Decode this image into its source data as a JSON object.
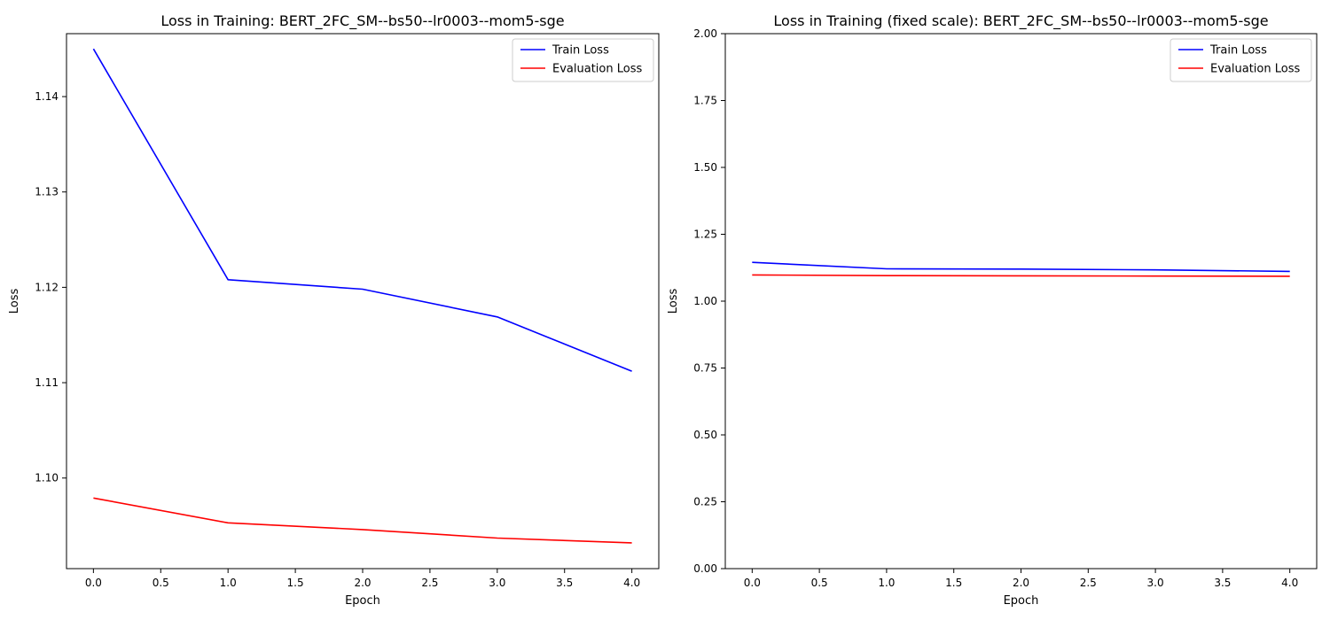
{
  "chart_data": [
    {
      "type": "line",
      "title": "Loss in Training: BERT_2FC_SM--bs50--lr0003--mom5-sge",
      "xlabel": "Epoch",
      "ylabel": "Loss",
      "x": [
        0,
        1,
        2,
        3,
        4
      ],
      "xlim": [
        -0.2,
        4.2
      ],
      "ylim": [
        1.0905,
        1.1466
      ],
      "xticks": [
        0.0,
        0.5,
        1.0,
        1.5,
        2.0,
        2.5,
        3.0,
        3.5,
        4.0
      ],
      "yticks": [
        1.1,
        1.11,
        1.12,
        1.13,
        1.14
      ],
      "grid": false,
      "legend": "upper right",
      "series": [
        {
          "name": "Train Loss",
          "color": "#0000ff",
          "values": [
            1.145,
            1.1208,
            1.1198,
            1.1169,
            1.1112
          ]
        },
        {
          "name": "Evaluation Loss",
          "color": "#ff0000",
          "values": [
            1.0979,
            1.0953,
            1.0946,
            1.0937,
            1.0932
          ]
        }
      ]
    },
    {
      "type": "line",
      "title": "Loss in Training (fixed scale): BERT_2FC_SM--bs50--lr0003--mom5-sge",
      "xlabel": "Epoch",
      "ylabel": "Loss",
      "x": [
        0,
        1,
        2,
        3,
        4
      ],
      "xlim": [
        -0.2,
        4.2
      ],
      "ylim": [
        0,
        2
      ],
      "xticks": [
        0.0,
        0.5,
        1.0,
        1.5,
        2.0,
        2.5,
        3.0,
        3.5,
        4.0
      ],
      "yticks": [
        0.0,
        0.25,
        0.5,
        0.75,
        1.0,
        1.25,
        1.5,
        1.75,
        2.0
      ],
      "grid": false,
      "legend": "upper right",
      "series": [
        {
          "name": "Train Loss",
          "color": "#0000ff",
          "values": [
            1.145,
            1.1208,
            1.1198,
            1.1169,
            1.1112
          ]
        },
        {
          "name": "Evaluation Loss",
          "color": "#ff0000",
          "values": [
            1.0979,
            1.0953,
            1.0946,
            1.0937,
            1.0932
          ]
        }
      ]
    }
  ]
}
